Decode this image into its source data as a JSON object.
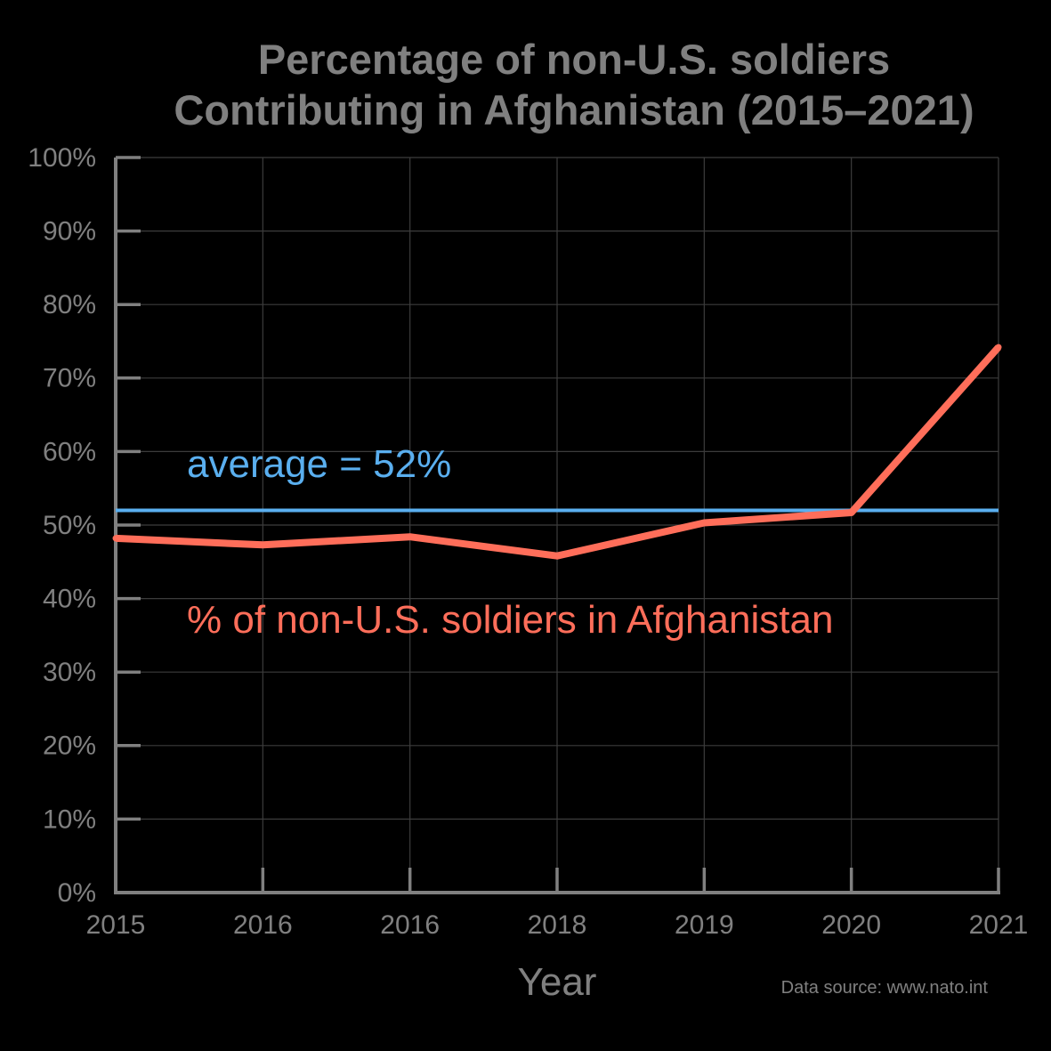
{
  "chart_data": {
    "type": "line",
    "title_line1": "Percentage of non-U.S. soldiers",
    "title_line2": "Contributing in Afghanistan (2015–2021)",
    "xlabel": "Year",
    "ylabel": "",
    "categories": [
      "2015",
      "2016",
      "2016",
      "2018",
      "2019",
      "2020",
      "2021"
    ],
    "series": [
      {
        "name": "% of non-U.S. soldiers in Afghanistan",
        "color": "#ff6e5a",
        "values": [
          48.2,
          47.3,
          48.4,
          45.8,
          50.3,
          51.7,
          74.2
        ]
      }
    ],
    "reference_line": {
      "label": "average = 52%",
      "value": 52,
      "color": "#5aafef"
    },
    "yticks": [
      "0%",
      "10%",
      "20%",
      "30%",
      "40%",
      "50%",
      "60%",
      "70%",
      "80%",
      "90%",
      "100%"
    ],
    "ylim": [
      0,
      100
    ],
    "grid": true,
    "source_note": "Data source: www.nato.int",
    "colors": {
      "background": "#000000",
      "axis": "#808080",
      "text": "#808080",
      "grid": "#3c3c3c"
    }
  }
}
